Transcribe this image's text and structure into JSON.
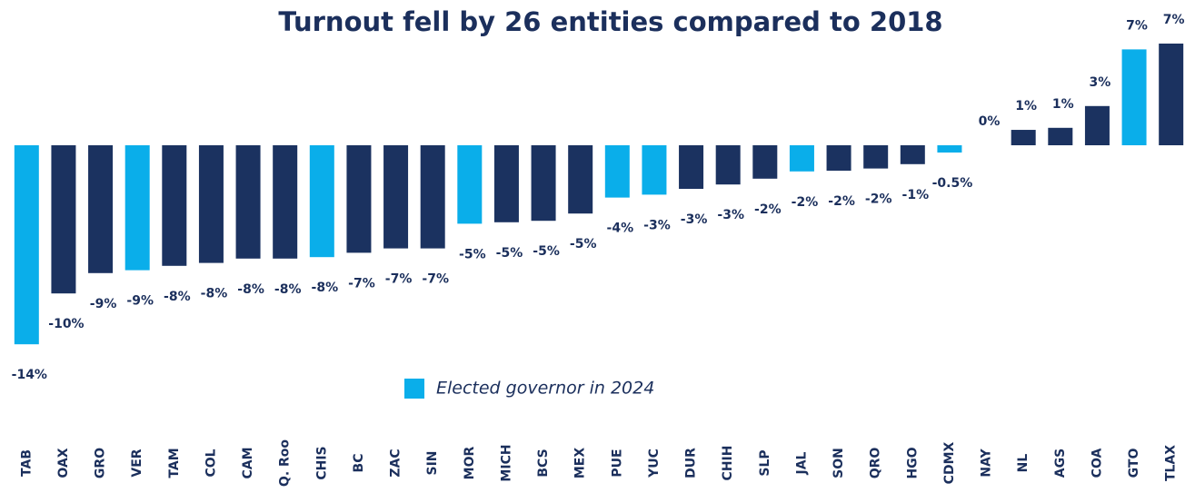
{
  "chart_data": {
    "type": "bar",
    "title": "Turnout fell by 26 entities compared to 2018",
    "categories": [
      "TAB",
      "OAX",
      "GRO",
      "VER",
      "TAM",
      "COL",
      "CAM",
      "Q. Roo",
      "CHIS",
      "BC",
      "ZAC",
      "SIN",
      "MOR",
      "MICH",
      "BCS",
      "MEX",
      "PUE",
      "YUC",
      "DUR",
      "CHIH",
      "SLP",
      "JAL",
      "SON",
      "QRO",
      "HGO",
      "CDMX",
      "NAY",
      "NL",
      "AGS",
      "COA",
      "GTO",
      "TLAX"
    ],
    "values": [
      -13.7,
      -10.2,
      -8.8,
      -8.6,
      -8.3,
      -8.1,
      -7.8,
      -7.8,
      -7.7,
      -7.4,
      -7.1,
      -7.1,
      -5.4,
      -5.3,
      -5.2,
      -4.7,
      -3.6,
      -3.4,
      -3.0,
      -2.7,
      -2.3,
      -1.8,
      -1.75,
      -1.6,
      -1.3,
      -0.5,
      0,
      1.06,
      1.2,
      2.7,
      6.6,
      7.0
    ],
    "value_labels": [
      "-14%",
      "-10%",
      "-9%",
      "-9%",
      "-8%",
      "-8%",
      "-8%",
      "-8%",
      "-8%",
      "-7%",
      "-7%",
      "-7%",
      "-5%",
      "-5%",
      "-5%",
      "-5%",
      "-4%",
      "-3%",
      "-3%",
      "-3%",
      "-2%",
      "-2%",
      "-2%",
      "-2%",
      "-1%",
      "-0.5%",
      "0%",
      "1%",
      "1%",
      "3%",
      "7%",
      "7%"
    ],
    "bar_colors": [
      "#0aaeea",
      "#1b3260",
      "#1b3260",
      "#0aaeea",
      "#1b3260",
      "#1b3260",
      "#1b3260",
      "#1b3260",
      "#0aaeea",
      "#1b3260",
      "#1b3260",
      "#1b3260",
      "#0aaeea",
      "#1b3260",
      "#1b3260",
      "#1b3260",
      "#0aaeea",
      "#0aaeea",
      "#1b3260",
      "#1b3260",
      "#1b3260",
      "#0aaeea",
      "#1b3260",
      "#1b3260",
      "#1b3260",
      "#0aaeea",
      "#1b3260",
      "#1b3260",
      "#1b3260",
      "#1b3260",
      "#0aaeea",
      "#1b3260"
    ],
    "ylim": [
      -14,
      7.5
    ],
    "legend": {
      "label": "Elected governor in 2024",
      "color": "#0aaeea"
    }
  }
}
